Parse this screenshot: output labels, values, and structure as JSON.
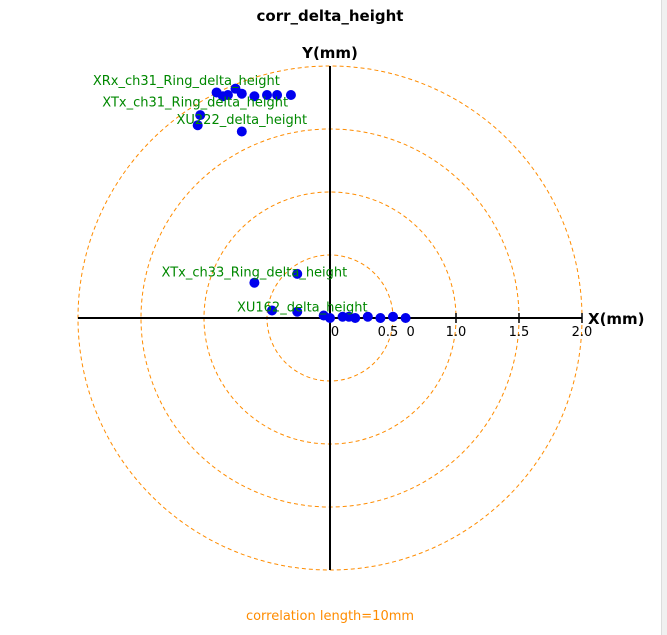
{
  "chart_data": {
    "type": "scatter",
    "title": "corr_delta_height",
    "xlabel": "X(mm)",
    "ylabel": "Y(mm)",
    "footer": "correlation length=10mm",
    "x_tick_labels": [
      "0",
      "0.5",
      "0",
      "1.0",
      "1.5",
      "2.0"
    ],
    "rings": [
      0.5,
      1.0,
      1.5,
      2.0
    ],
    "xlim": [
      -2.0,
      2.0
    ],
    "ylim": [
      -2.0,
      2.0
    ],
    "grid": false,
    "colors": {
      "points": "#0000ee",
      "labels": "#008800",
      "rings": "#ff8c00",
      "axes": "#000000",
      "footer": "#ff8c00"
    },
    "labels": [
      {
        "text": "XRx_ch31_Ring_delta_height",
        "x": -1.14,
        "y": 1.85
      },
      {
        "text": "XTx_ch31_Ring_delta_height",
        "x": -1.07,
        "y": 1.68
      },
      {
        "text": "XU222_delta_height",
        "x": -0.7,
        "y": 1.54
      },
      {
        "text": "XTx_ch33_Ring_delta_height",
        "x": -0.6,
        "y": 0.33
      },
      {
        "text": "XU162_delta_height",
        "x": -0.22,
        "y": 0.05
      }
    ],
    "series": [
      {
        "x": [
          -0.9,
          -0.85,
          -0.81,
          -0.75,
          -0.7,
          -0.6,
          -0.5,
          -0.42,
          -0.31,
          -1.03,
          -1.05,
          -0.7,
          -0.6,
          -0.26,
          -0.46,
          -0.26,
          -0.05,
          0.0,
          0.1,
          0.15,
          0.2,
          0.3,
          0.4,
          0.5,
          0.6
        ],
        "y": [
          1.79,
          1.76,
          1.77,
          1.82,
          1.78,
          1.76,
          1.77,
          1.77,
          1.77,
          1.61,
          1.53,
          1.48,
          0.28,
          0.35,
          0.06,
          0.05,
          0.02,
          0.0,
          0.01,
          0.01,
          0.0,
          0.01,
          0.0,
          0.01,
          0.0
        ]
      }
    ]
  }
}
